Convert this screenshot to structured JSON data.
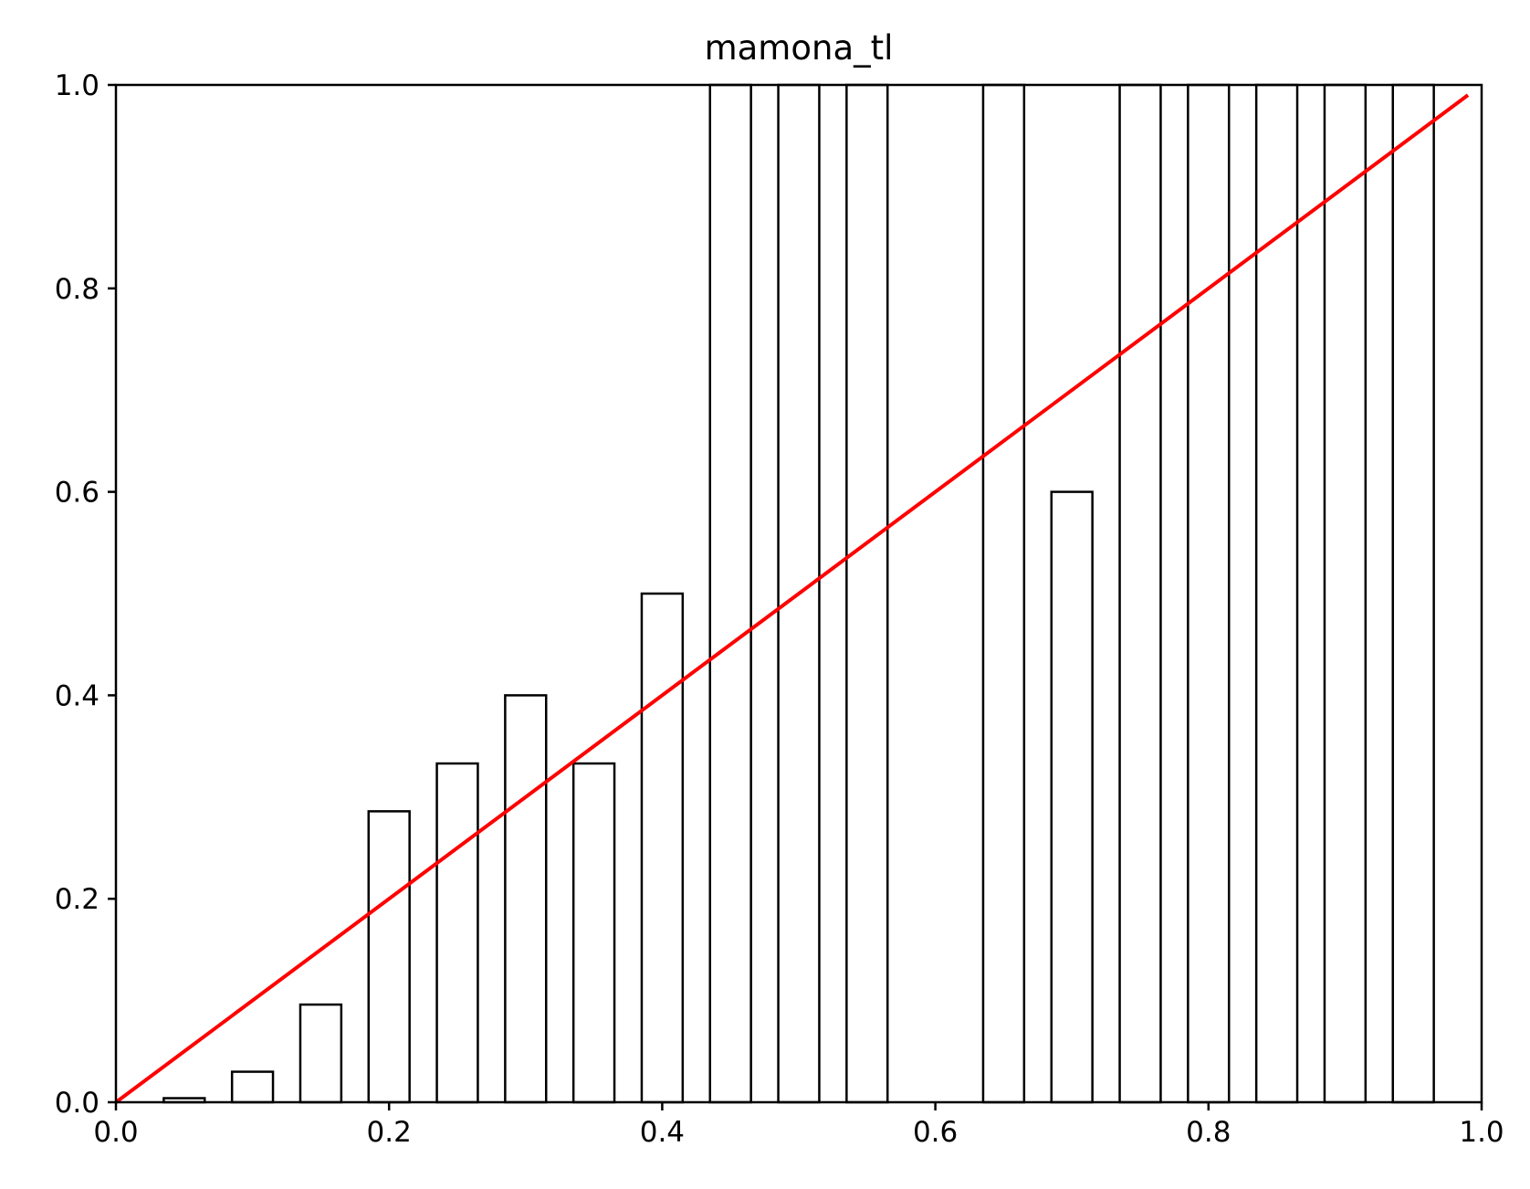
{
  "chart_data": {
    "type": "bar",
    "title": "mamona_tl",
    "xlabel": "",
    "ylabel": "",
    "xlim": [
      0.0,
      1.0
    ],
    "ylim": [
      0.0,
      1.0
    ],
    "grid": false,
    "bar_width": 0.03,
    "x_ticks": [
      "0.0",
      "0.2",
      "0.4",
      "0.6",
      "0.8",
      "1.0"
    ],
    "y_ticks": [
      "0.0",
      "0.2",
      "0.4",
      "0.6",
      "0.8",
      "1.0"
    ],
    "bars": {
      "x": [
        0.05,
        0.1,
        0.15,
        0.2,
        0.25,
        0.3,
        0.35,
        0.4,
        0.45,
        0.5,
        0.55,
        0.6,
        0.65,
        0.7,
        0.75,
        0.8,
        0.85,
        0.9,
        0.95
      ],
      "values": [
        0.004,
        0.03,
        0.096,
        0.286,
        0.333,
        0.4,
        0.333,
        0.5,
        1.0,
        1.0,
        1.0,
        0.0,
        1.0,
        0.6,
        1.0,
        1.0,
        1.0,
        1.0,
        1.0
      ]
    },
    "reference_line": {
      "x": [
        0.0,
        0.99
      ],
      "y": [
        0.0,
        0.99
      ],
      "color": "#ff0000"
    },
    "colors": {
      "bar_edge": "#000000",
      "bar_fill": "#ffffff",
      "line": "#ff0000"
    }
  }
}
